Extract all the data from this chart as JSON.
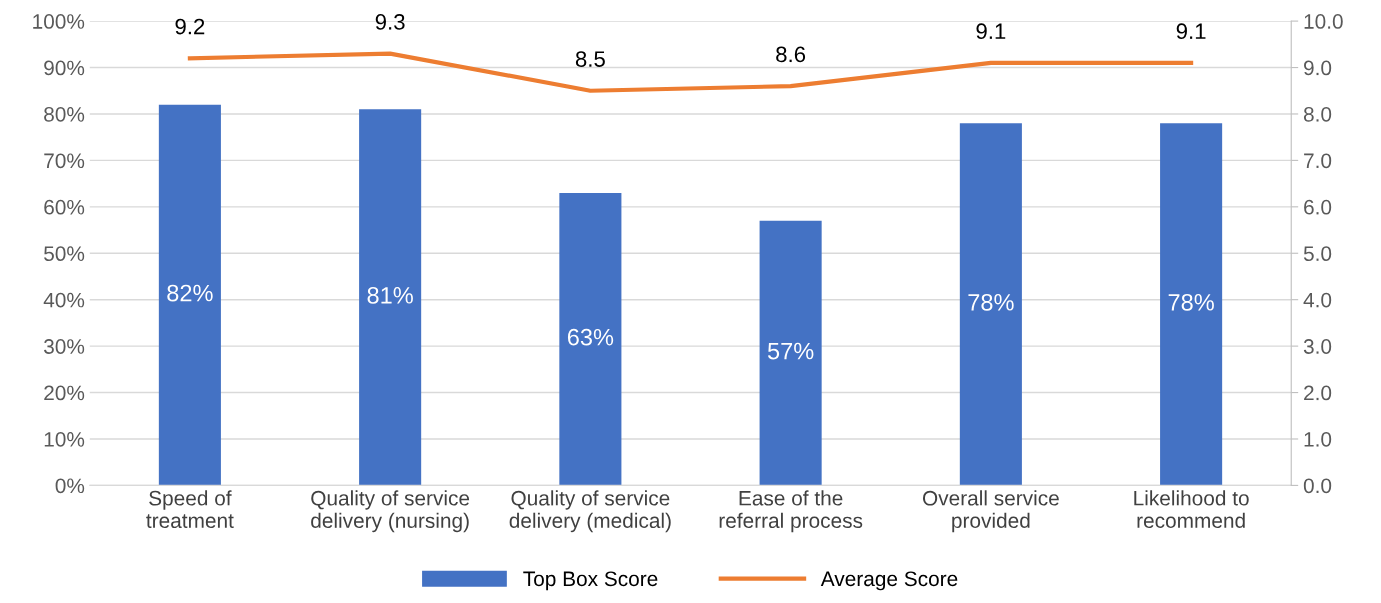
{
  "chart_data": {
    "type": "bar",
    "categories": [
      "Speed of\ntreatment",
      "Quality of service\ndelivery (nursing)",
      "Quality of service\ndelivery (medical)",
      "Ease of the\nreferral process",
      "Overall service\nprovided",
      "Likelihood to\nrecommend"
    ],
    "series": [
      {
        "name": "Top Box Score",
        "color": "#4472c4",
        "values": [
          82,
          81,
          63,
          57,
          78,
          78
        ],
        "value_labels": [
          "82%",
          "81%",
          "63%",
          "57%",
          "78%",
          "78%"
        ]
      },
      {
        "name": "Average Score",
        "type": "line",
        "axis": "y2",
        "color": "#ed7d31",
        "values": [
          9.2,
          9.3,
          8.5,
          8.6,
          9.1,
          9.1
        ],
        "value_labels": [
          "9.2",
          "9.3",
          "8.5",
          "8.6",
          "9.1",
          "9.1"
        ]
      }
    ],
    "ylim": [
      0,
      100
    ],
    "yticks": [
      {
        "value": 0,
        "label": "0%"
      },
      {
        "value": 10,
        "label": "10%"
      },
      {
        "value": 20,
        "label": "20%"
      },
      {
        "value": 30,
        "label": "30%"
      },
      {
        "value": 40,
        "label": "40%"
      },
      {
        "value": 50,
        "label": "50%"
      },
      {
        "value": 60,
        "label": "60%"
      },
      {
        "value": 70,
        "label": "70%"
      },
      {
        "value": 80,
        "label": "80%"
      },
      {
        "value": 90,
        "label": "90%"
      },
      {
        "value": 100,
        "label": "100%"
      }
    ],
    "y2lim": [
      0,
      10
    ],
    "y2ticks": [
      {
        "value": 0,
        "label": "0.0"
      },
      {
        "value": 1,
        "label": "1.0"
      },
      {
        "value": 2,
        "label": "2.0"
      },
      {
        "value": 3,
        "label": "3.0"
      },
      {
        "value": 4,
        "label": "4.0"
      },
      {
        "value": 5,
        "label": "5.0"
      },
      {
        "value": 6,
        "label": "6.0"
      },
      {
        "value": 7,
        "label": "7.0"
      },
      {
        "value": 8,
        "label": "8.0"
      },
      {
        "value": 9,
        "label": "9.0"
      },
      {
        "value": 10,
        "label": "10.0"
      }
    ],
    "grid": "y",
    "legend": "bottom",
    "marker": "none",
    "line_style": "solid"
  }
}
